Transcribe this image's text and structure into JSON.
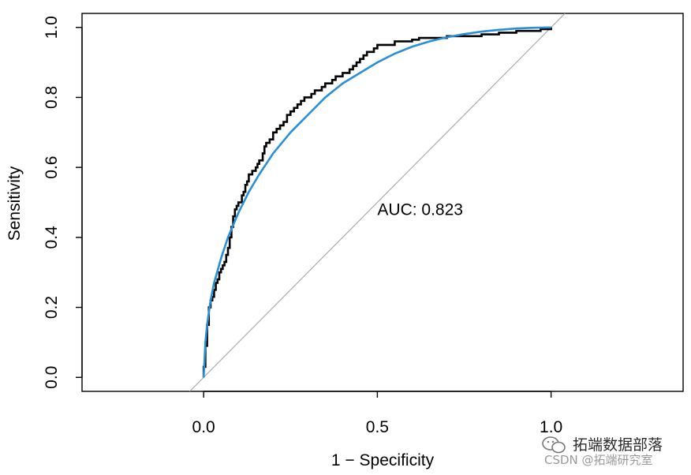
{
  "chart_data": {
    "type": "line",
    "title": "",
    "xlabel": "1 − Specificity",
    "ylabel": "Sensitivity",
    "xlim": [
      -0.35,
      1.38
    ],
    "ylim": [
      -0.04,
      1.04
    ],
    "x_ticks": [
      0.0,
      0.5,
      1.0
    ],
    "x_tick_labels": [
      "0.0",
      "0.5",
      "1.0"
    ],
    "y_ticks": [
      0.0,
      0.2,
      0.4,
      0.6,
      0.8,
      1.0
    ],
    "y_tick_labels": [
      "0.0",
      "0.2",
      "0.4",
      "0.6",
      "0.8",
      "1.0"
    ],
    "grid": false,
    "annotation": {
      "text": "AUC: 0.823",
      "x": 0.5,
      "y": 0.48
    },
    "colors": {
      "empirical": "#000000",
      "smoothed": "#2b8fd6",
      "reference": "#aaaaaa"
    },
    "series": [
      {
        "x": [
          0.0,
          0.0,
          0.005,
          0.005,
          0.01,
          0.01,
          0.015,
          0.02,
          0.025,
          0.03,
          0.035,
          0.04,
          0.045,
          0.05,
          0.055,
          0.06,
          0.065,
          0.07,
          0.075,
          0.08,
          0.085,
          0.09,
          0.095,
          0.1,
          0.11,
          0.115,
          0.12,
          0.125,
          0.13,
          0.14,
          0.15,
          0.155,
          0.16,
          0.17,
          0.175,
          0.18,
          0.19,
          0.2,
          0.21,
          0.22,
          0.23,
          0.24,
          0.25,
          0.26,
          0.27,
          0.28,
          0.29,
          0.3,
          0.31,
          0.32,
          0.33,
          0.34,
          0.35,
          0.36,
          0.37,
          0.38,
          0.39,
          0.4,
          0.41,
          0.42,
          0.43,
          0.44,
          0.45,
          0.46,
          0.47,
          0.48,
          0.49,
          0.5,
          0.52,
          0.55,
          0.58,
          0.6,
          0.62,
          0.65,
          0.7,
          0.75,
          0.8,
          0.85,
          0.9,
          0.95,
          0.97,
          1.0
        ],
        "y": [
          0.0,
          0.03,
          0.05,
          0.09,
          0.1,
          0.15,
          0.2,
          0.22,
          0.23,
          0.25,
          0.27,
          0.28,
          0.3,
          0.31,
          0.32,
          0.33,
          0.35,
          0.37,
          0.4,
          0.43,
          0.46,
          0.48,
          0.49,
          0.5,
          0.52,
          0.53,
          0.55,
          0.56,
          0.58,
          0.59,
          0.6,
          0.61,
          0.62,
          0.64,
          0.66,
          0.67,
          0.68,
          0.7,
          0.71,
          0.72,
          0.73,
          0.75,
          0.76,
          0.77,
          0.78,
          0.79,
          0.8,
          0.8,
          0.81,
          0.82,
          0.82,
          0.83,
          0.84,
          0.84,
          0.85,
          0.86,
          0.86,
          0.87,
          0.87,
          0.88,
          0.89,
          0.9,
          0.91,
          0.92,
          0.93,
          0.93,
          0.94,
          0.95,
          0.95,
          0.96,
          0.96,
          0.965,
          0.97,
          0.97,
          0.975,
          0.975,
          0.98,
          0.985,
          0.99,
          0.99,
          0.995,
          1.0
        ]
      },
      {
        "x": [
          0.0,
          0.005,
          0.01,
          0.02,
          0.03,
          0.05,
          0.07,
          0.1,
          0.13,
          0.16,
          0.2,
          0.25,
          0.3,
          0.35,
          0.4,
          0.45,
          0.5,
          0.55,
          0.6,
          0.65,
          0.7,
          0.75,
          0.8,
          0.85,
          0.9,
          0.95,
          1.0
        ],
        "y": [
          0.0,
          0.1,
          0.15,
          0.22,
          0.27,
          0.34,
          0.4,
          0.47,
          0.53,
          0.58,
          0.64,
          0.7,
          0.75,
          0.8,
          0.84,
          0.87,
          0.9,
          0.925,
          0.945,
          0.96,
          0.972,
          0.981,
          0.988,
          0.993,
          0.997,
          0.999,
          1.0
        ]
      }
    ],
    "reference_line": {
      "x": [
        -0.04,
        1.04
      ],
      "y": [
        -0.04,
        1.04
      ]
    }
  },
  "watermark": {
    "line1": "拓端数据部落",
    "line2": "CSDN @拓端研究室"
  }
}
